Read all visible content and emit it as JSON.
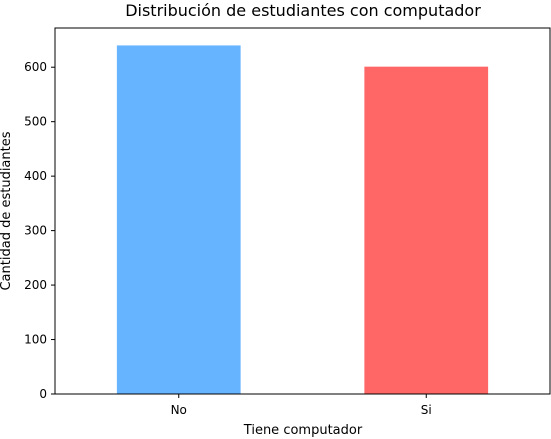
{
  "chart_data": {
    "type": "bar",
    "title": "Distribución de estudiantes con computador",
    "xlabel": "Tiene computador",
    "ylabel": "Cantidad de estudiantes",
    "categories": [
      "No",
      "Si"
    ],
    "values": [
      640,
      601
    ],
    "ylim": [
      0,
      672
    ],
    "yticks": [
      0,
      100,
      200,
      300,
      400,
      500,
      600
    ],
    "colors": [
      "#66b3ff",
      "#ff6666"
    ],
    "grid": false,
    "legend": false
  }
}
